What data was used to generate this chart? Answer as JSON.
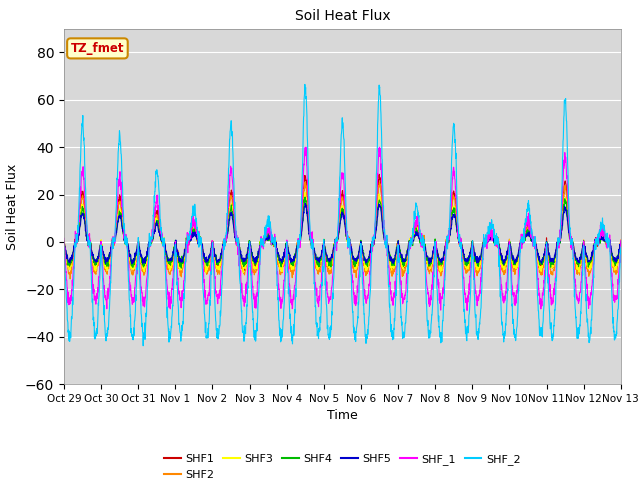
{
  "title": "Soil Heat Flux",
  "xlabel": "Time",
  "ylabel": "Soil Heat Flux",
  "ylim": [
    -60,
    90
  ],
  "yticks": [
    -60,
    -40,
    -20,
    0,
    20,
    40,
    60,
    80
  ],
  "xtick_labels": [
    "Oct 29",
    "Oct 30",
    "Oct 31",
    "Nov 1",
    "Nov 2",
    "Nov 3",
    "Nov 4",
    "Nov 5",
    "Nov 6",
    "Nov 7",
    "Nov 8",
    "Nov 9",
    "Nov 10",
    "Nov 11",
    "Nov 12",
    "Nov 13"
  ],
  "series_names": [
    "SHF1",
    "SHF2",
    "SHF3",
    "SHF4",
    "SHF5",
    "SHF_1",
    "SHF_2"
  ],
  "series_colors": [
    "#cc0000",
    "#ff8800",
    "#ffff00",
    "#00bb00",
    "#0000cc",
    "#ff00ff",
    "#00ccff"
  ],
  "annotation_text": "TZ_fmet",
  "annotation_bg": "#ffffcc",
  "annotation_border": "#cc8800",
  "annotation_text_color": "#cc0000",
  "background_color": "#d8d8d8",
  "n_days": 15,
  "points_per_day": 144
}
